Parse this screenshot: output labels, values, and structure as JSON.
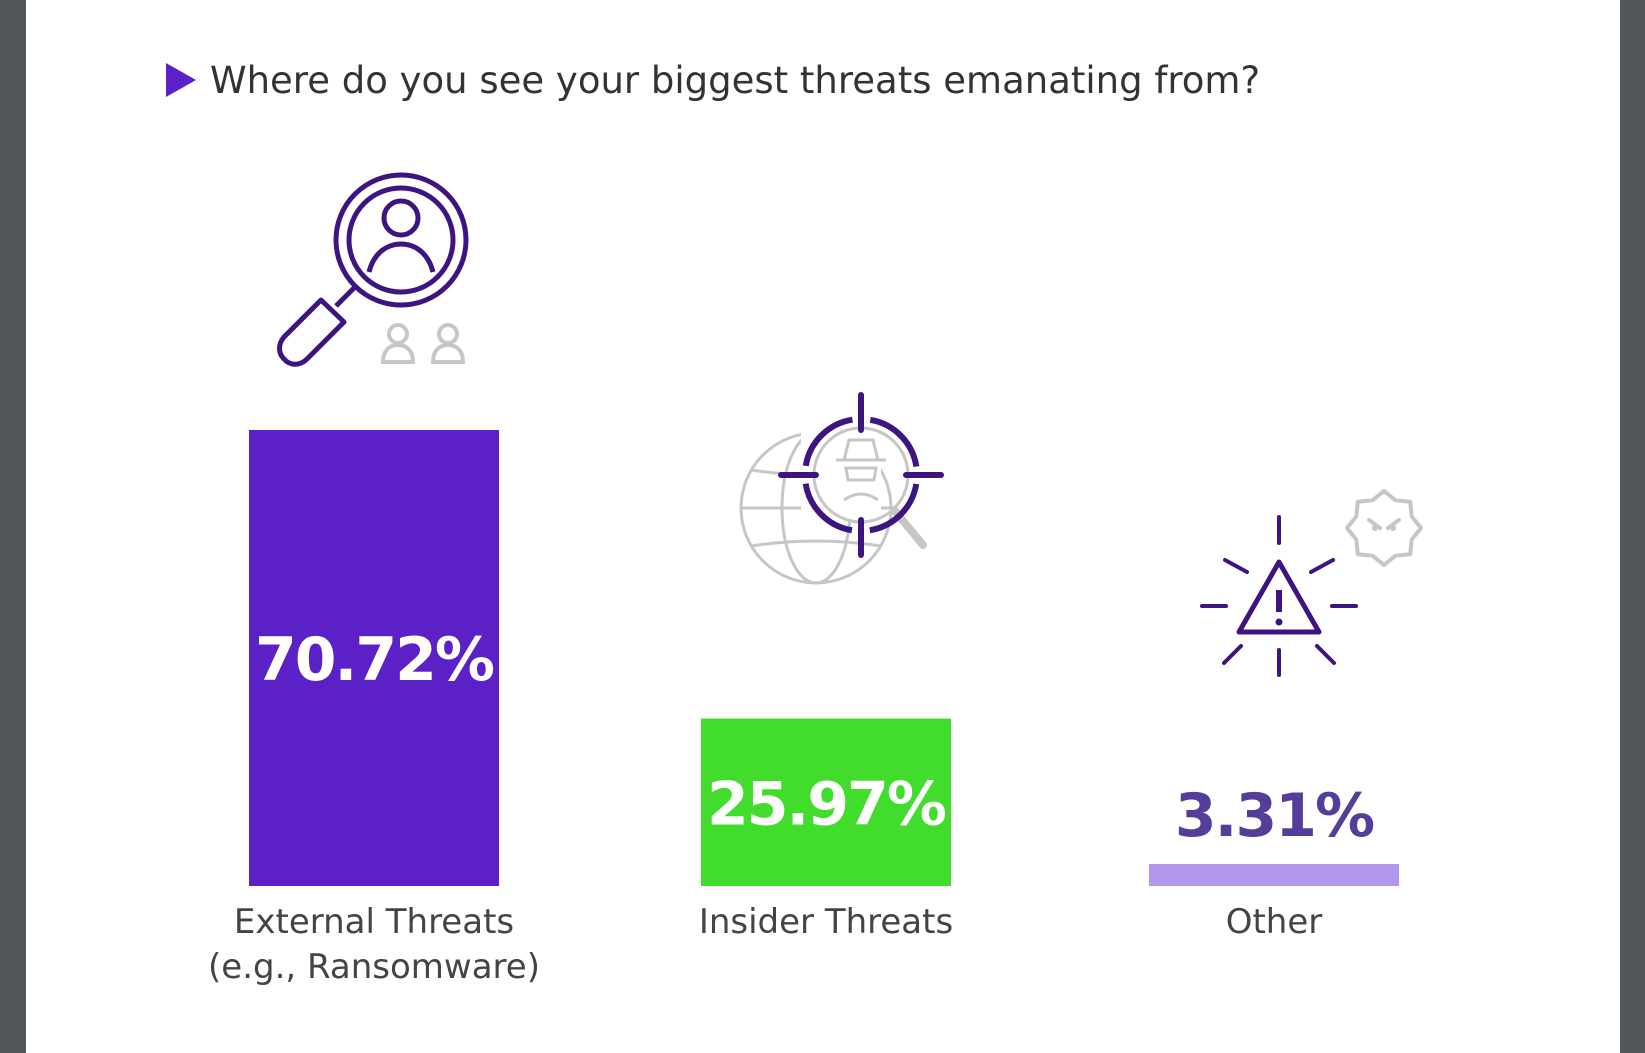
{
  "header": {
    "title": "Where do you see your biggest threats emanating from?"
  },
  "colors": {
    "accent": "#5b21c6",
    "external": "#5b21c6",
    "insider": "#41dc2c",
    "other": "#b497ec",
    "other_value_text": "#553d9a",
    "icon_gray": "#c6c6c6",
    "icon_purple": "#3d1480"
  },
  "icons": [
    "magnifier-person-icon",
    "globe-target-spy-icon",
    "warning-virus-icon"
  ],
  "chart_data": {
    "type": "bar",
    "title": "Where do you see your biggest threats emanating from?",
    "categories": [
      [
        "External Threats",
        "(e.g., Ransomware)"
      ],
      [
        "Insider Threats"
      ],
      [
        "Other"
      ]
    ],
    "values": [
      70.72,
      25.97,
      3.31
    ],
    "value_labels": [
      "70.72%",
      "25.97%",
      "3.31%"
    ],
    "unit": "%",
    "ylim": [
      0,
      100
    ],
    "grid": false,
    "legend": "none"
  }
}
